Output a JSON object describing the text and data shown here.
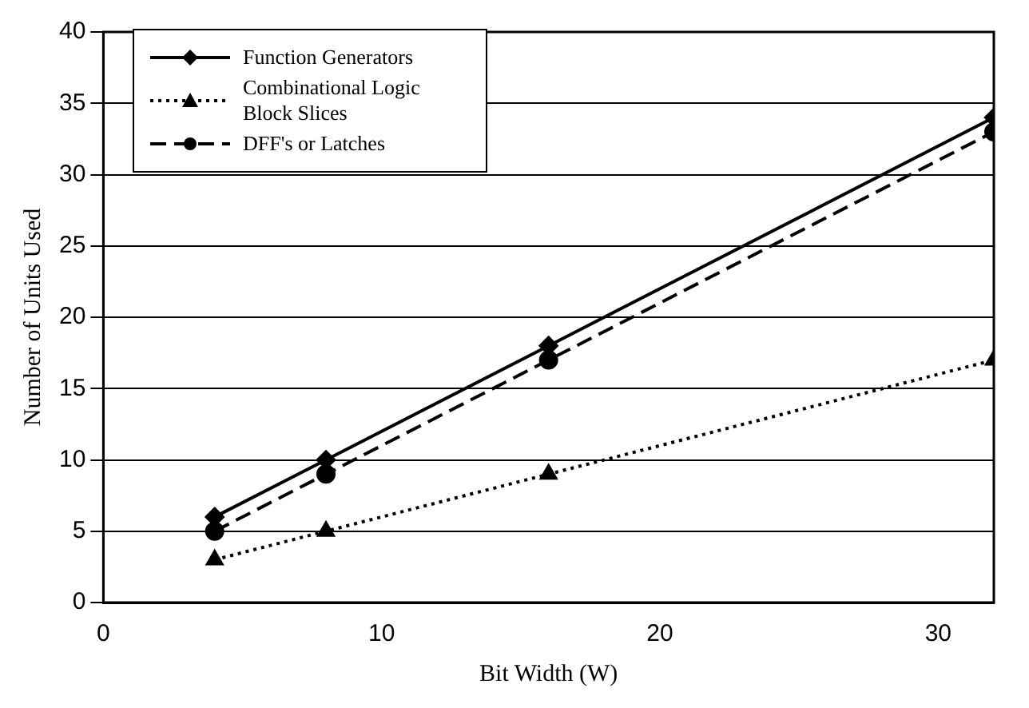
{
  "chart_data": {
    "type": "line",
    "xlabel": "Bit Width (W)",
    "ylabel": "Number of Units Used",
    "x": [
      4,
      8,
      16,
      32
    ],
    "xlim": [
      0,
      32
    ],
    "xticks": [
      0,
      10,
      20,
      30
    ],
    "ylim": [
      0,
      40
    ],
    "yticks": [
      0,
      5,
      10,
      15,
      20,
      25,
      30,
      35,
      40
    ],
    "grid": "y",
    "legend": "top left",
    "series": [
      {
        "name": "Function Generators",
        "color": "#000000",
        "values": [
          6,
          10,
          18,
          34
        ],
        "marker": "diamond",
        "line_style": "solid"
      },
      {
        "name": "Combinational Logic Block Slices",
        "color": "#000000",
        "values": [
          3,
          5,
          9,
          17
        ],
        "marker": "triangle",
        "line_style": "dotted"
      },
      {
        "name": "DFF's or Latches",
        "color": "#000000",
        "values": [
          5,
          9,
          17,
          33
        ],
        "marker": "circle",
        "line_style": "dashed"
      }
    ]
  }
}
